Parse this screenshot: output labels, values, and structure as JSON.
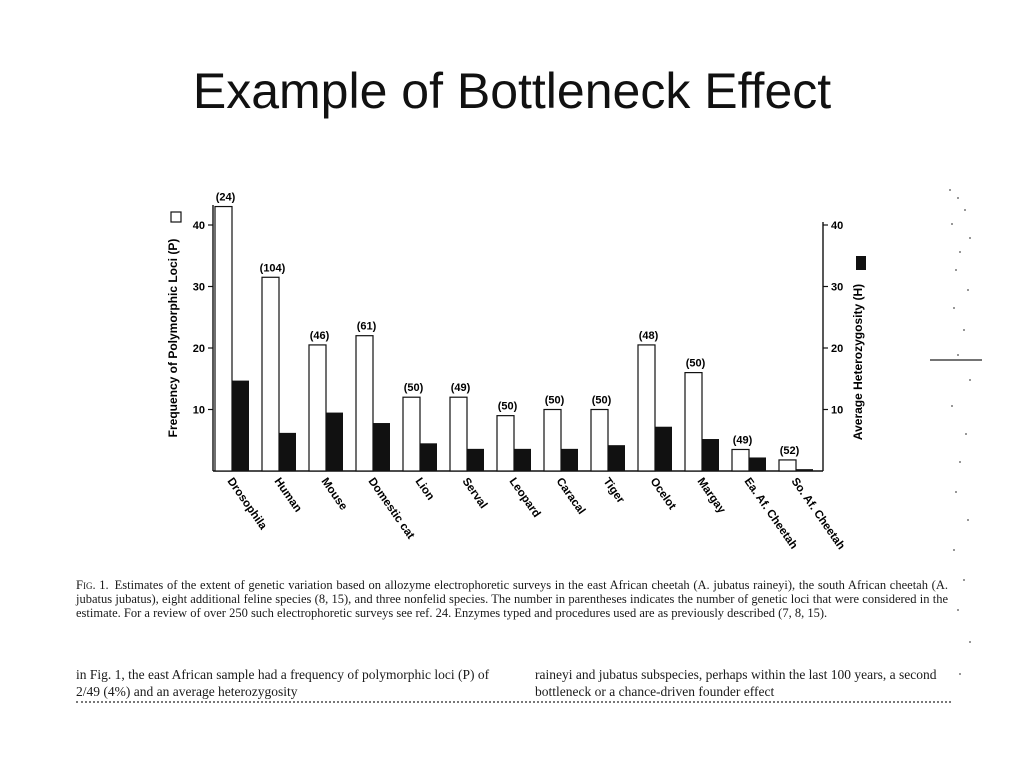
{
  "slide": {
    "title": "Example of Bottleneck Effect"
  },
  "chart_data": {
    "type": "bar",
    "categories": [
      "Drosophila",
      "Human",
      "Mouse",
      "Domestic cat",
      "Lion",
      "Serval",
      "Leopard",
      "Caracal",
      "Tiger",
      "Ocelot",
      "Margay",
      "Ea. Af. Cheetah",
      "So. Af. Cheetah"
    ],
    "loci_labels": [
      "(24)",
      "(104)",
      "(46)",
      "(61)",
      "(50)",
      "(49)",
      "(50)",
      "(50)",
      "(50)",
      "(48)",
      "(50)",
      "(49)",
      "(52)"
    ],
    "series": [
      {
        "name": "Frequency of Polymorphic Loci (P)",
        "color": "#ffffff",
        "values": [
          43,
          31.5,
          20.5,
          22,
          12,
          12,
          9,
          10,
          10,
          20.5,
          16,
          3.5,
          1.8
        ]
      },
      {
        "name": "Average Heterozygosity (H)",
        "color": "#111111",
        "values": [
          14.7,
          6.2,
          9.5,
          7.8,
          4.5,
          3.6,
          3.6,
          3.6,
          4.2,
          7.2,
          5.2,
          2.2,
          0.3
        ]
      }
    ],
    "ylabel": "Frequency of Polymorphic Loci (P)",
    "y2label": "Average Heterozygosity (H)",
    "ylim": [
      0,
      43
    ],
    "yticks": [
      10,
      20,
      30,
      40
    ],
    "y2ticks": [
      10,
      20,
      30,
      40
    ]
  },
  "caption": {
    "fig_label": "Fig. 1.",
    "text": "Estimates of the extent of genetic variation based on allozyme electrophoretic surveys in the east African cheetah (A. jubatus raineyi), the south African cheetah (A. jubatus jubatus), eight additional feline species (8, 15), and three nonfelid species. The number in parentheses indicates the number of genetic loci that were considered in the estimate. For a review of over 250 such electrophoretic surveys see ref. 24. Enzymes typed and procedures used are as previously described (7, 8, 15)."
  },
  "body_text": {
    "left": "in Fig. 1, the east African sample had a frequency of polymorphic loci (P) of 2/49 (4%) and an average heterozygosity",
    "right": "raineyi and jubatus subspecies, perhaps within the last 100 years, a second bottleneck or a chance-driven founder effect"
  }
}
